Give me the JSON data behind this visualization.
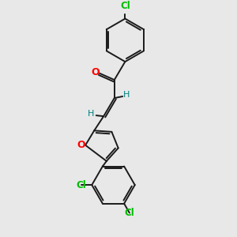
{
  "background_color": "#e8e8e8",
  "bond_color": "#1a1a1a",
  "cl_color": "#00bb00",
  "o_color": "#ff0000",
  "h_color": "#008080",
  "font_size_cl": 8.5,
  "font_size_h": 8.0,
  "font_size_o": 9.0,
  "lw": 1.4,
  "figsize": [
    3.0,
    3.0
  ],
  "dpi": 100,
  "xlim": [
    60,
    220
  ],
  "ylim": [
    10,
    295
  ]
}
